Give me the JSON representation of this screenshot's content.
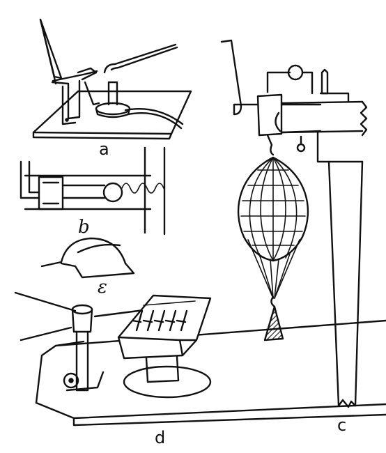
{
  "figure": {
    "panels": [
      {
        "id": "a",
        "label": "a"
      },
      {
        "id": "b",
        "label": "b"
      },
      {
        "id": "e",
        "label": "ε"
      },
      {
        "id": "d",
        "label": "d"
      },
      {
        "id": "c",
        "label": "c"
      }
    ]
  },
  "colors": {
    "ink": "#111111",
    "paper": "#ffffff"
  }
}
